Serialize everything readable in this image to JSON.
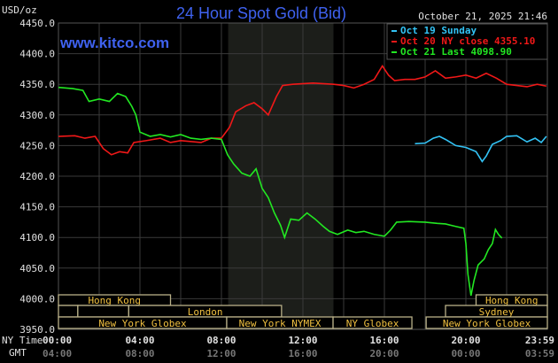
{
  "header": {
    "title": "24 Hour Spot Gold (Bid)",
    "unit": "USD/oz",
    "timestamp": "October 21, 2025 21:46",
    "website": "www.kitco.com"
  },
  "legend": [
    {
      "label": "Oct 19 Sunday",
      "color": "#33c3f5"
    },
    {
      "label": "Oct 20 NY close 4355.10",
      "color": "#f01818"
    },
    {
      "label": "Oct 21 Last 4098.90",
      "color": "#22e822"
    }
  ],
  "chart_data": {
    "type": "line",
    "title": "24 Hour Spot Gold (Bid)",
    "ylabel": "USD/oz",
    "ylim": [
      3950,
      4450
    ],
    "xlim": [
      0,
      24
    ],
    "yticks": [
      "4450.0",
      "4400.0",
      "4350.0",
      "4300.0",
      "4250.0",
      "4200.0",
      "4150.0",
      "4100.0",
      "4050.0",
      "4000.0",
      "3950.0"
    ],
    "xticks_ny": [
      "00:00",
      "04:00",
      "08:00",
      "12:00",
      "16:00",
      "20:00",
      "23:59"
    ],
    "xticks_gmt": [
      "04:00",
      "08:00",
      "12:00",
      "16:00",
      "20:00",
      "00:00",
      "03:59"
    ],
    "xlabel_ny": "NY Time",
    "xlabel_gmt": "GMT",
    "grid": true,
    "highlight_hours": [
      8.33,
      13.5
    ],
    "series": [
      {
        "name": "Oct 19 Sunday",
        "color": "#33c3f5",
        "points": [
          [
            17.5,
            4253
          ],
          [
            18,
            4254
          ],
          [
            18.4,
            4262
          ],
          [
            18.7,
            4265
          ],
          [
            19,
            4260
          ],
          [
            19.5,
            4250
          ],
          [
            20,
            4247
          ],
          [
            20.5,
            4240
          ],
          [
            20.8,
            4224
          ],
          [
            21,
            4233
          ],
          [
            21.3,
            4252
          ],
          [
            21.7,
            4258
          ],
          [
            22,
            4265
          ],
          [
            22.5,
            4266
          ],
          [
            23,
            4256
          ],
          [
            23.4,
            4262
          ],
          [
            23.7,
            4255
          ],
          [
            23.95,
            4265
          ]
        ]
      },
      {
        "name": "Oct 20 NY close 4355.10",
        "color": "#f01818",
        "points": [
          [
            0,
            4265
          ],
          [
            0.8,
            4266
          ],
          [
            1.3,
            4262
          ],
          [
            1.8,
            4265
          ],
          [
            2.2,
            4245
          ],
          [
            2.6,
            4235
          ],
          [
            3,
            4240
          ],
          [
            3.4,
            4238
          ],
          [
            3.7,
            4255
          ],
          [
            4.3,
            4258
          ],
          [
            5,
            4262
          ],
          [
            5.5,
            4255
          ],
          [
            6,
            4258
          ],
          [
            7,
            4255
          ],
          [
            7.5,
            4262
          ],
          [
            8,
            4262
          ],
          [
            8.4,
            4280
          ],
          [
            8.7,
            4305
          ],
          [
            9.2,
            4315
          ],
          [
            9.6,
            4320
          ],
          [
            10,
            4310
          ],
          [
            10.3,
            4300
          ],
          [
            10.7,
            4330
          ],
          [
            11,
            4348
          ],
          [
            11.5,
            4350
          ],
          [
            12.5,
            4352
          ],
          [
            13.5,
            4350
          ],
          [
            14,
            4348
          ],
          [
            14.5,
            4344
          ],
          [
            15,
            4350
          ],
          [
            15.5,
            4358
          ],
          [
            15.9,
            4380
          ],
          [
            16.2,
            4365
          ],
          [
            16.5,
            4356
          ],
          [
            17,
            4358
          ],
          [
            17.5,
            4358
          ],
          [
            18,
            4362
          ],
          [
            18.5,
            4372
          ],
          [
            19,
            4360
          ],
          [
            19.5,
            4362
          ],
          [
            20,
            4365
          ],
          [
            20.5,
            4360
          ],
          [
            21,
            4368
          ],
          [
            21.5,
            4360
          ],
          [
            22,
            4350
          ],
          [
            22.5,
            4348
          ],
          [
            23,
            4346
          ],
          [
            23.5,
            4350
          ],
          [
            23.95,
            4347
          ]
        ]
      },
      {
        "name": "Oct 21 Last 4098.90",
        "color": "#22e822",
        "points": [
          [
            0,
            4345
          ],
          [
            0.7,
            4343
          ],
          [
            1.2,
            4340
          ],
          [
            1.5,
            4322
          ],
          [
            2,
            4326
          ],
          [
            2.5,
            4322
          ],
          [
            2.9,
            4335
          ],
          [
            3.3,
            4330
          ],
          [
            3.6,
            4314
          ],
          [
            3.8,
            4300
          ],
          [
            4,
            4272
          ],
          [
            4.5,
            4265
          ],
          [
            5,
            4268
          ],
          [
            5.5,
            4264
          ],
          [
            6,
            4268
          ],
          [
            6.5,
            4262
          ],
          [
            7,
            4260
          ],
          [
            7.5,
            4262
          ],
          [
            8,
            4260
          ],
          [
            8.3,
            4235
          ],
          [
            8.6,
            4220
          ],
          [
            9,
            4205
          ],
          [
            9.4,
            4200
          ],
          [
            9.7,
            4212
          ],
          [
            10,
            4180
          ],
          [
            10.3,
            4165
          ],
          [
            10.6,
            4140
          ],
          [
            10.9,
            4120
          ],
          [
            11.1,
            4100
          ],
          [
            11.4,
            4130
          ],
          [
            11.8,
            4128
          ],
          [
            12.2,
            4140
          ],
          [
            12.6,
            4130
          ],
          [
            13,
            4118
          ],
          [
            13.3,
            4110
          ],
          [
            13.7,
            4105
          ],
          [
            14.2,
            4112
          ],
          [
            14.6,
            4108
          ],
          [
            15,
            4110
          ],
          [
            15.5,
            4105
          ],
          [
            16,
            4102
          ],
          [
            16.3,
            4112
          ],
          [
            16.6,
            4125
          ],
          [
            17.2,
            4126
          ],
          [
            18,
            4125
          ],
          [
            18.6,
            4123
          ],
          [
            19,
            4122
          ],
          [
            19.5,
            4118
          ],
          [
            19.9,
            4115
          ],
          [
            20,
            4090
          ],
          [
            20.1,
            4040
          ],
          [
            20.25,
            4005
          ],
          [
            20.4,
            4030
          ],
          [
            20.6,
            4055
          ],
          [
            20.9,
            4065
          ],
          [
            21.1,
            4080
          ],
          [
            21.3,
            4090
          ],
          [
            21.45,
            4113
          ],
          [
            21.6,
            4105
          ],
          [
            21.77,
            4099
          ]
        ]
      }
    ],
    "sessions": [
      {
        "label": "Hong Kong",
        "row": 0,
        "start": 0,
        "end": 5.5,
        "labeled": true
      },
      {
        "label": "Hong Kong",
        "row": 0,
        "start": 20.5,
        "end": 24,
        "labeled": true
      },
      {
        "label": "",
        "row": 1,
        "start": 0,
        "end": 0.95,
        "labeled": false
      },
      {
        "label": "",
        "row": 1,
        "start": 0.95,
        "end": 3.45,
        "labeled": false
      },
      {
        "label": "London",
        "row": 1,
        "start": 3.45,
        "end": 10.95,
        "labeled": true
      },
      {
        "label": "Sydney",
        "row": 1,
        "start": 19,
        "end": 24,
        "labeled": true
      },
      {
        "label": "New York Globex",
        "row": 2,
        "start": 0,
        "end": 8.26,
        "labeled": true
      },
      {
        "label": "New York NYMEX",
        "row": 2,
        "start": 8.26,
        "end": 13.48,
        "labeled": true
      },
      {
        "label": "NY Globex",
        "row": 2,
        "start": 13.48,
        "end": 17.35,
        "labeled": true
      },
      {
        "label": "New York Globex",
        "row": 2,
        "start": 18.05,
        "end": 24,
        "labeled": true
      }
    ]
  }
}
